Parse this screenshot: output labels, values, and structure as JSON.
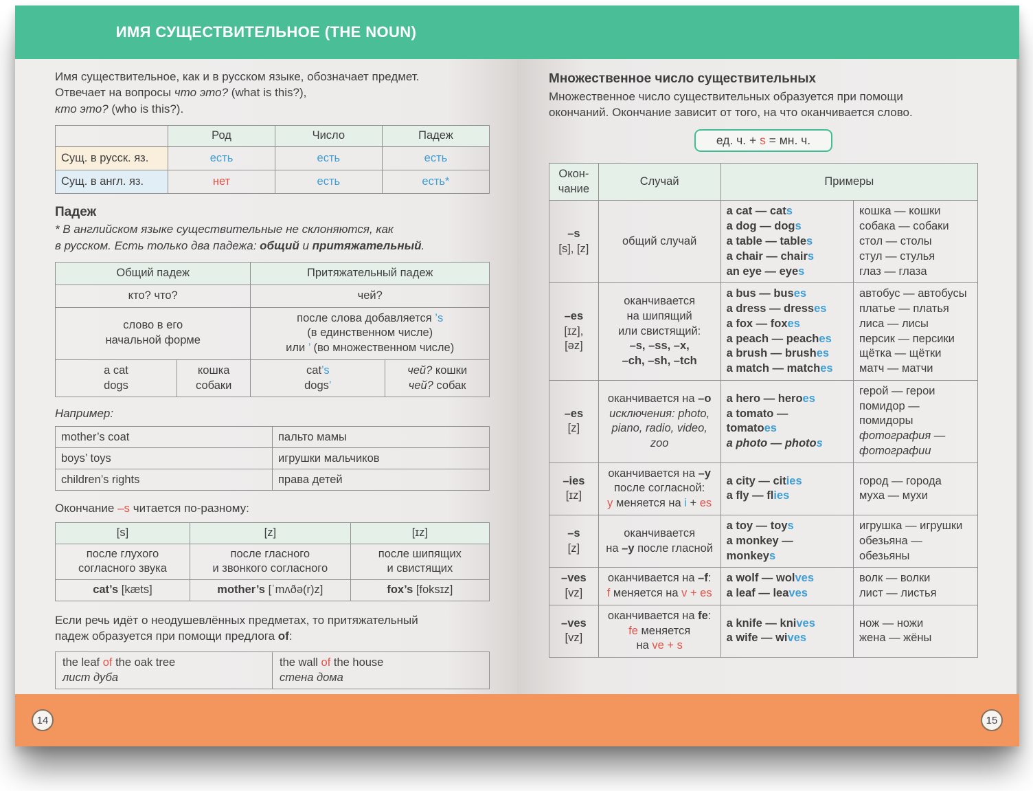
{
  "colors": {
    "green": "#4ABF97",
    "orange": "#F2965E",
    "mint": "#E4F0E8",
    "blue": "#3E9ED6",
    "red": "#DF5348",
    "cream": "#FAEEDC",
    "lightblue": "#E2EEF6",
    "text": "#3E3E3E",
    "border": "#8F8F8F"
  },
  "left_page": {
    "page_number": "14",
    "header_title": "ИМЯ СУЩЕСТВИТЕЛЬНОЕ (THE NOUN)",
    "intro": [
      {
        "t": "Имя существительное, как и в русском языке, обозначает предмет.\nОтвечает на вопросы "
      },
      {
        "t": "что это?",
        "c": "i"
      },
      {
        "t": " (what is this?),\n"
      },
      {
        "t": "кто это?",
        "c": "i"
      },
      {
        "t": " (who is this?)."
      }
    ],
    "table1": {
      "corner": "",
      "col_headers": [
        "Род",
        "Число",
        "Падеж"
      ],
      "rows": [
        {
          "label": "Сущ. в русск. яз.",
          "cells": [
            [
              {
                "t": "есть",
                "c": "bl"
              }
            ],
            [
              {
                "t": "есть",
                "c": "bl"
              }
            ],
            [
              {
                "t": "есть",
                "c": "bl"
              }
            ]
          ]
        },
        {
          "label": "Сущ. в англ. яз.",
          "cells": [
            [
              {
                "t": "нет",
                "c": "rd"
              }
            ],
            [
              {
                "t": "есть",
                "c": "bl"
              }
            ],
            [
              {
                "t": "есть*",
                "c": "bl"
              }
            ]
          ]
        }
      ]
    },
    "padezh": {
      "heading": "Падеж",
      "note": [
        {
          "t": "* В английском языке существительные не склоняются, как\nв русском. Есть только два падежа: ",
          "c": "i"
        },
        {
          "t": "общий",
          "c": "b i"
        },
        {
          "t": " и ",
          "c": "i"
        },
        {
          "t": "притяжательный",
          "c": "b i"
        },
        {
          "t": ".",
          "c": "i"
        }
      ]
    },
    "table2": {
      "h1": "Общий падеж",
      "h2": "Притяжательный падеж",
      "q1": "кто? что?",
      "q2": "чей?",
      "d1": "слово в его\nначальной форме",
      "d2": [
        {
          "t": "после слова добавляется "
        },
        {
          "t": "’s",
          "c": "bl"
        },
        {
          "t": "\n(в единственном числе)\nили "
        },
        {
          "t": "’",
          "c": "bl"
        },
        {
          "t": " (во множественном числе)"
        }
      ],
      "ex1": "a cat\ndogs",
      "ex2": "кошка\nсобаки",
      "ex3": [
        {
          "t": "cat"
        },
        {
          "t": "’s",
          "c": "bl"
        },
        {
          "t": "\ndogs"
        },
        {
          "t": "’",
          "c": "bl"
        }
      ],
      "ex4": [
        {
          "t": "чей?",
          "c": "i"
        },
        {
          "t": " кошки\n"
        },
        {
          "t": "чей?",
          "c": "i"
        },
        {
          "t": " собак"
        }
      ]
    },
    "naprimer_label": "Например:",
    "table3": {
      "rows": [
        [
          "mother’s coat",
          "пальто мамы"
        ],
        [
          "boys’ toys",
          "игрушки мальчиков"
        ],
        [
          "children’s rights",
          "права детей"
        ]
      ]
    },
    "endings_line": [
      {
        "t": "Окончание "
      },
      {
        "t": "–s",
        "c": "rd"
      },
      {
        "t": " читается по-разному:"
      }
    ],
    "table4": {
      "headers": [
        "[s]",
        "[z]",
        "[ɪz]"
      ],
      "cases": [
        "после глухого\nсогласного звука",
        "после гласного\nи звонкого согласного",
        "после шипящих\nи свистящих"
      ],
      "examples": [
        [
          {
            "t": "cat’s",
            "c": "b"
          },
          {
            "t": " [kæts]"
          }
        ],
        [
          {
            "t": "mother’s",
            "c": "b"
          },
          {
            "t": " [ˈmʌðə(r)z]"
          }
        ],
        [
          {
            "t": "fox’s",
            "c": "b"
          },
          {
            "t": " [foksɪz]"
          }
        ]
      ]
    },
    "of_para": [
      {
        "t": "Если речь идёт о неодушевлённых предметах, то притяжательный\nпадеж образуется при помощи предлога "
      },
      {
        "t": "of",
        "c": "b"
      },
      {
        "t": ":"
      }
    ],
    "table5": {
      "c1": [
        {
          "t": "the leaf "
        },
        {
          "t": "of",
          "c": "rd"
        },
        {
          "t": " the oak tree\n"
        },
        {
          "t": "лист дуба",
          "c": "i"
        }
      ],
      "c2": [
        {
          "t": "the wall "
        },
        {
          "t": "of",
          "c": "rd"
        },
        {
          "t": " the house\n"
        },
        {
          "t": "стена дома",
          "c": "i"
        }
      ]
    }
  },
  "right_page": {
    "page_number": "15",
    "heading": "Множественное число существительных",
    "intro": "Множественное число существительных образуется при помощи\nокончаний. Окончание зависит от того, на что оканчивается слово.",
    "formula": [
      {
        "t": "ед. ч. + "
      },
      {
        "t": "s",
        "c": "rd"
      },
      {
        "t": " = мн. ч."
      }
    ],
    "table": {
      "headers": [
        "Окон-\nчание",
        "Случай",
        "Примеры"
      ],
      "rows": [
        {
          "ending": [
            {
              "t": "–s",
              "c": "b"
            },
            {
              "t": "\n[s], [z]"
            }
          ],
          "case": [
            {
              "t": "общий случай"
            }
          ],
          "en": [
            {
              "t": "a cat — cat",
              "c": "b"
            },
            {
              "t": "s\n",
              "c": "b bl"
            },
            {
              "t": "a dog — dog",
              "c": "b"
            },
            {
              "t": "s\n",
              "c": "b bl"
            },
            {
              "t": "a table — table",
              "c": "b"
            },
            {
              "t": "s\n",
              "c": "b bl"
            },
            {
              "t": "a chair — chair",
              "c": "b"
            },
            {
              "t": "s\n",
              "c": "b bl"
            },
            {
              "t": "an eye — eye",
              "c": "b"
            },
            {
              "t": "s",
              "c": "b bl"
            }
          ],
          "ru": [
            {
              "t": "кошка — кошки\nсобака — собаки\nстол — столы\nстул — стулья\nглаз — глаза"
            }
          ]
        },
        {
          "ending": [
            {
              "t": "–es",
              "c": "b"
            },
            {
              "t": "\n[ɪz],\n[əz]"
            }
          ],
          "case": [
            {
              "t": "оканчивается\nна шипящий\nили свистящий:\n"
            },
            {
              "t": "–s, –ss, –x,\n–ch, –sh, –tch",
              "c": "b"
            }
          ],
          "en": [
            {
              "t": "a bus — bus",
              "c": "b"
            },
            {
              "t": "es\n",
              "c": "b bl"
            },
            {
              "t": "a dress — dress",
              "c": "b"
            },
            {
              "t": "es\n",
              "c": "b bl"
            },
            {
              "t": "a fox — fox",
              "c": "b"
            },
            {
              "t": "es\n",
              "c": "b bl"
            },
            {
              "t": "a peach — peach",
              "c": "b"
            },
            {
              "t": "es\n",
              "c": "b bl"
            },
            {
              "t": "a brush — brush",
              "c": "b"
            },
            {
              "t": "es\n",
              "c": "b bl"
            },
            {
              "t": "a match — match",
              "c": "b"
            },
            {
              "t": "es",
              "c": "b bl"
            }
          ],
          "ru": [
            {
              "t": "автобус — автобусы\nплатье — платья\nлиса — лисы\nперсик — персики\nщётка — щётки\nматч — матчи"
            }
          ]
        },
        {
          "ending": [
            {
              "t": "–es",
              "c": "b"
            },
            {
              "t": "\n[z]"
            }
          ],
          "case": [
            {
              "t": "оканчивается на "
            },
            {
              "t": "–o",
              "c": "b"
            },
            {
              "t": "\n"
            },
            {
              "t": "исключения: photo,\npiano, radio, video,\nzoo",
              "c": "i"
            }
          ],
          "en": [
            {
              "t": "a hero — hero",
              "c": "b"
            },
            {
              "t": "es\n",
              "c": "b bl"
            },
            {
              "t": "a tomato —\ntomato",
              "c": "b"
            },
            {
              "t": "es\n",
              "c": "b bl"
            },
            {
              "t": "a photo — photo",
              "c": "b i"
            },
            {
              "t": "s",
              "c": "b i bl"
            }
          ],
          "ru": [
            {
              "t": "герой — герои\nпомидор —\nпомидоры\n"
            },
            {
              "t": "фотография —\nфотографии",
              "c": "i"
            }
          ]
        },
        {
          "ending": [
            {
              "t": "–ies",
              "c": "b"
            },
            {
              "t": "\n[ɪz]"
            }
          ],
          "case": [
            {
              "t": "оканчивается на "
            },
            {
              "t": "–y",
              "c": "b"
            },
            {
              "t": "\nпосле согласной:\n"
            },
            {
              "t": "y",
              "c": "rd"
            },
            {
              "t": " меняется на "
            },
            {
              "t": "i",
              "c": "bl"
            },
            {
              "t": " + "
            },
            {
              "t": "es",
              "c": "rd"
            }
          ],
          "en": [
            {
              "t": "a city — cit",
              "c": "b"
            },
            {
              "t": "ies\n",
              "c": "b bl"
            },
            {
              "t": "a fly — fl",
              "c": "b"
            },
            {
              "t": "ies",
              "c": "b bl"
            }
          ],
          "ru": [
            {
              "t": "город — города\nмуха — мухи"
            }
          ]
        },
        {
          "ending": [
            {
              "t": "–s",
              "c": "b"
            },
            {
              "t": "\n[z]"
            }
          ],
          "case": [
            {
              "t": "оканчивается\nна "
            },
            {
              "t": "–y",
              "c": "b"
            },
            {
              "t": " после гласной"
            }
          ],
          "en": [
            {
              "t": "a toy — toy",
              "c": "b"
            },
            {
              "t": "s\n",
              "c": "b bl"
            },
            {
              "t": "a monkey —\nmonkey",
              "c": "b"
            },
            {
              "t": "s",
              "c": "b bl"
            }
          ],
          "ru": [
            {
              "t": "игрушка — игрушки\nобезьяна —\nобезьяны"
            }
          ]
        },
        {
          "ending": [
            {
              "t": "–ves",
              "c": "b"
            },
            {
              "t": "\n[vz]"
            }
          ],
          "case": [
            {
              "t": "оканчивается на "
            },
            {
              "t": "–f",
              "c": "b"
            },
            {
              "t": ":\n"
            },
            {
              "t": "f",
              "c": "rd"
            },
            {
              "t": " меняется на "
            },
            {
              "t": "v + es",
              "c": "rd"
            }
          ],
          "en": [
            {
              "t": "a wolf — wol",
              "c": "b"
            },
            {
              "t": "ves\n",
              "c": "b bl"
            },
            {
              "t": "a leaf — lea",
              "c": "b"
            },
            {
              "t": "ves",
              "c": "b bl"
            }
          ],
          "ru": [
            {
              "t": "волк — волки\nлист — листья"
            }
          ]
        },
        {
          "ending": [
            {
              "t": "–ves",
              "c": "b"
            },
            {
              "t": "\n[vz]"
            }
          ],
          "case": [
            {
              "t": "оканчивается на "
            },
            {
              "t": "fe",
              "c": "b"
            },
            {
              "t": ":\n"
            },
            {
              "t": "fe",
              "c": "rd"
            },
            {
              "t": " меняется\nна "
            },
            {
              "t": "ve + s",
              "c": "rd"
            }
          ],
          "en": [
            {
              "t": "a knife — kni",
              "c": "b"
            },
            {
              "t": "ves\n",
              "c": "b bl"
            },
            {
              "t": "a wife — wi",
              "c": "b"
            },
            {
              "t": "ves",
              "c": "b bl"
            }
          ],
          "ru": [
            {
              "t": "нож — ножи\nжена — жёны"
            }
          ]
        }
      ]
    }
  }
}
